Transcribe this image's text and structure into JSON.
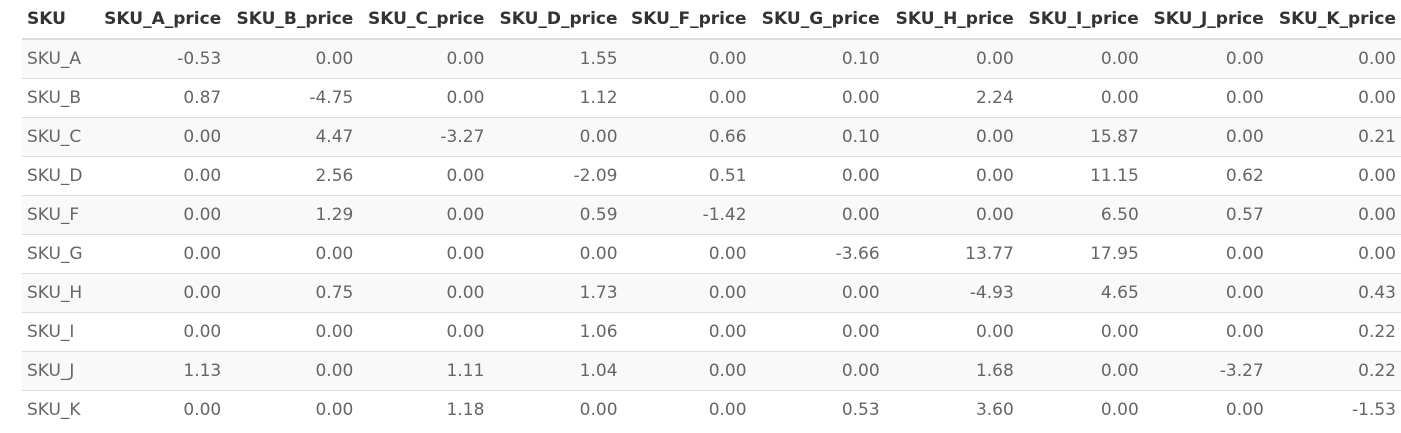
{
  "table": {
    "columns": [
      "SKU",
      "SKU_A_price",
      "SKU_B_price",
      "SKU_C_price",
      "SKU_D_price",
      "SKU_F_price",
      "SKU_G_price",
      "SKU_H_price",
      "SKU_I_price",
      "SKU_J_price",
      "SKU_K_price"
    ],
    "rows": [
      [
        "SKU_A",
        "-0.53",
        "0.00",
        "0.00",
        "1.55",
        "0.00",
        "0.10",
        "0.00",
        "0.00",
        "0.00",
        "0.00"
      ],
      [
        "SKU_B",
        "0.87",
        "-4.75",
        "0.00",
        "1.12",
        "0.00",
        "0.00",
        "2.24",
        "0.00",
        "0.00",
        "0.00"
      ],
      [
        "SKU_C",
        "0.00",
        "4.47",
        "-3.27",
        "0.00",
        "0.66",
        "0.10",
        "0.00",
        "15.87",
        "0.00",
        "0.21"
      ],
      [
        "SKU_D",
        "0.00",
        "2.56",
        "0.00",
        "-2.09",
        "0.51",
        "0.00",
        "0.00",
        "11.15",
        "0.62",
        "0.00"
      ],
      [
        "SKU_F",
        "0.00",
        "1.29",
        "0.00",
        "0.59",
        "-1.42",
        "0.00",
        "0.00",
        "6.50",
        "0.57",
        "0.00"
      ],
      [
        "SKU_G",
        "0.00",
        "0.00",
        "0.00",
        "0.00",
        "0.00",
        "-3.66",
        "13.77",
        "17.95",
        "0.00",
        "0.00"
      ],
      [
        "SKU_H",
        "0.00",
        "0.75",
        "0.00",
        "1.73",
        "0.00",
        "0.00",
        "-4.93",
        "4.65",
        "0.00",
        "0.43"
      ],
      [
        "SKU_I",
        "0.00",
        "0.00",
        "0.00",
        "1.06",
        "0.00",
        "0.00",
        "0.00",
        "0.00",
        "0.00",
        "0.22"
      ],
      [
        "SKU_J",
        "1.13",
        "0.00",
        "1.11",
        "1.04",
        "0.00",
        "0.00",
        "1.68",
        "0.00",
        "-3.27",
        "0.22"
      ],
      [
        "SKU_K",
        "0.00",
        "0.00",
        "1.18",
        "0.00",
        "0.00",
        "0.53",
        "3.60",
        "0.00",
        "0.00",
        "-1.53"
      ]
    ]
  }
}
